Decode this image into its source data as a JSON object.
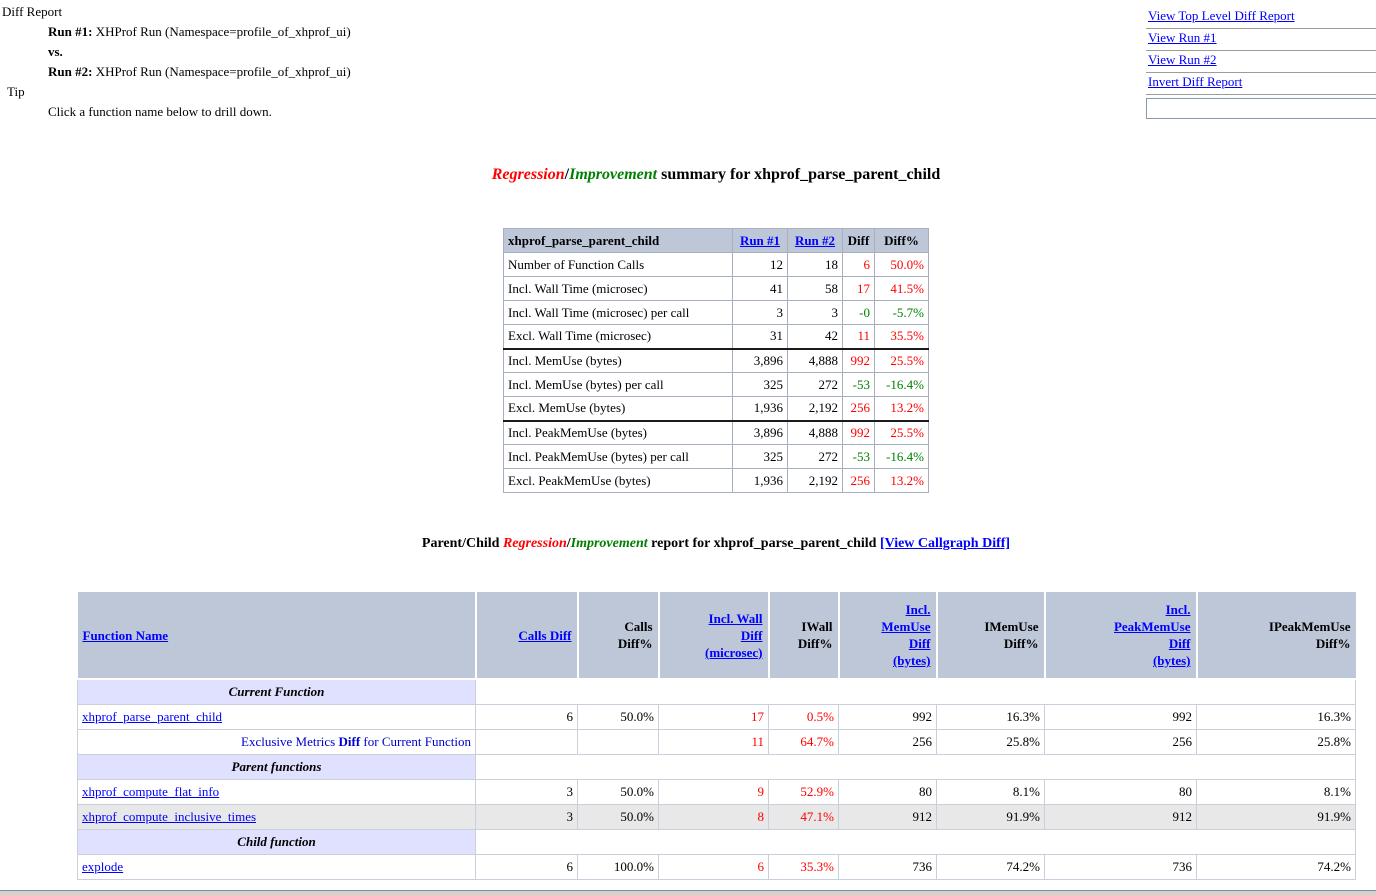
{
  "header": {
    "report_label": "Diff Report",
    "run1_label": "Run #1:",
    "run1_text": " XHProf Run (Namespace=profile_of_xhprof_ui)",
    "vs_label": "vs.",
    "run2_label": "Run #2:",
    "run2_text": " XHProf Run (Namespace=profile_of_xhprof_ui)",
    "tip_label": "Tip",
    "tip_text": "Click a function name below to drill down."
  },
  "nav": {
    "links": [
      {
        "label": "View Top Level Diff Report"
      },
      {
        "label": "View Run #1"
      },
      {
        "label": "View Run #2"
      },
      {
        "label": "Invert Diff Report"
      }
    ],
    "input_value": ""
  },
  "summary": {
    "title": {
      "regression": "Regression",
      "separator": "/",
      "improvement": "Improvement",
      "suffix": " summary for xhprof_parse_parent_child"
    },
    "table": {
      "header": {
        "name": "xhprof_parse_parent_child",
        "run1": "Run #1",
        "run2": "Run #2",
        "diff": "Diff",
        "diff_pct": "Diff%"
      },
      "rows": [
        {
          "label": "Number of Function Calls",
          "run1": "12",
          "run2": "18",
          "diff": "6",
          "diff_pct": "50.0%",
          "trend": "regression",
          "group_start": false
        },
        {
          "label": "Incl. Wall Time (microsec)",
          "run1": "41",
          "run2": "58",
          "diff": "17",
          "diff_pct": "41.5%",
          "trend": "regression",
          "group_start": false
        },
        {
          "label": "Incl. Wall Time (microsec) per call",
          "run1": "3",
          "run2": "3",
          "diff": "-0",
          "diff_pct": "-5.7%",
          "trend": "improvement",
          "group_start": false
        },
        {
          "label": "Excl. Wall Time (microsec)",
          "run1": "31",
          "run2": "42",
          "diff": "11",
          "diff_pct": "35.5%",
          "trend": "regression",
          "group_start": false
        },
        {
          "label": "Incl. MemUse (bytes)",
          "run1": "3,896",
          "run2": "4,888",
          "diff": "992",
          "diff_pct": "25.5%",
          "trend": "regression",
          "group_start": true
        },
        {
          "label": "Incl. MemUse (bytes) per call",
          "run1": "325",
          "run2": "272",
          "diff": "-53",
          "diff_pct": "-16.4%",
          "trend": "improvement",
          "group_start": false
        },
        {
          "label": "Excl. MemUse (bytes)",
          "run1": "1,936",
          "run2": "2,192",
          "diff": "256",
          "diff_pct": "13.2%",
          "trend": "regression",
          "group_start": false
        },
        {
          "label": "Incl. PeakMemUse (bytes)",
          "run1": "3,896",
          "run2": "4,888",
          "diff": "992",
          "diff_pct": "25.5%",
          "trend": "regression",
          "group_start": true
        },
        {
          "label": "Incl. PeakMemUse (bytes) per call",
          "run1": "325",
          "run2": "272",
          "diff": "-53",
          "diff_pct": "-16.4%",
          "trend": "improvement",
          "group_start": false
        },
        {
          "label": "Excl. PeakMemUse (bytes)",
          "run1": "1,936",
          "run2": "2,192",
          "diff": "256",
          "diff_pct": "13.2%",
          "trend": "regression",
          "group_start": false
        }
      ]
    }
  },
  "report": {
    "title": {
      "prefix": "Parent/Child ",
      "regression": "Regression",
      "separator": "/",
      "improvement": "Improvement",
      "middle": " report for xhprof_parse_parent_child ",
      "callgraph_link": "[View Callgraph Diff]"
    },
    "table": {
      "columns": [
        {
          "label": "Function Name",
          "link": true
        },
        {
          "label": "Calls Diff",
          "link": true
        },
        {
          "label": "Calls\nDiff%",
          "link": false
        },
        {
          "label": "Incl. Wall\nDiff\n(microsec)",
          "link": true
        },
        {
          "label": "IWall\nDiff%",
          "link": false
        },
        {
          "label": "Incl.\nMemUse\nDiff\n(bytes)",
          "link": true
        },
        {
          "label": "IMemUse\nDiff%",
          "link": false
        },
        {
          "label": "Incl.\nPeakMemUse\nDiff\n(bytes)",
          "link": true
        },
        {
          "label": "IPeakMemUse\nDiff%",
          "link": false
        }
      ],
      "regression_value_columns": [
        2,
        3
      ],
      "rows": [
        {
          "type": "band",
          "label": "Current Function"
        },
        {
          "type": "function",
          "name": "xhprof_parse_parent_child",
          "shaded": false,
          "values": [
            "6",
            "50.0%",
            "17",
            "0.5%",
            "992",
            "16.3%",
            "992",
            "16.3%"
          ]
        },
        {
          "type": "exclusive",
          "parts": {
            "pre": "Exclusive Metrics ",
            "bold": "Diff",
            "post": " for Current Function"
          },
          "values": [
            "",
            "",
            "11",
            "64.7%",
            "256",
            "25.8%",
            "256",
            "25.8%"
          ]
        },
        {
          "type": "band",
          "label": "Parent functions"
        },
        {
          "type": "function",
          "name": "xhprof_compute_flat_info",
          "shaded": false,
          "values": [
            "3",
            "50.0%",
            "9",
            "52.9%",
            "80",
            "8.1%",
            "80",
            "8.1%"
          ]
        },
        {
          "type": "function",
          "name": "xhprof_compute_inclusive_times",
          "shaded": true,
          "values": [
            "3",
            "50.0%",
            "8",
            "47.1%",
            "912",
            "91.9%",
            "912",
            "91.9%"
          ]
        },
        {
          "type": "band",
          "label": "Child function"
        },
        {
          "type": "function",
          "name": "explode",
          "shaded": false,
          "values": [
            "6",
            "100.0%",
            "6",
            "35.3%",
            "736",
            "74.2%",
            "736",
            "74.2%"
          ]
        }
      ]
    }
  },
  "colors": {
    "regression": "#ff0000",
    "improvement": "#008000",
    "link": "#0000ff",
    "table_header_bg": "#bdc7d8",
    "section_band_bg": "#e0e0ff",
    "alt_row_bg": "#e8e8e8"
  }
}
